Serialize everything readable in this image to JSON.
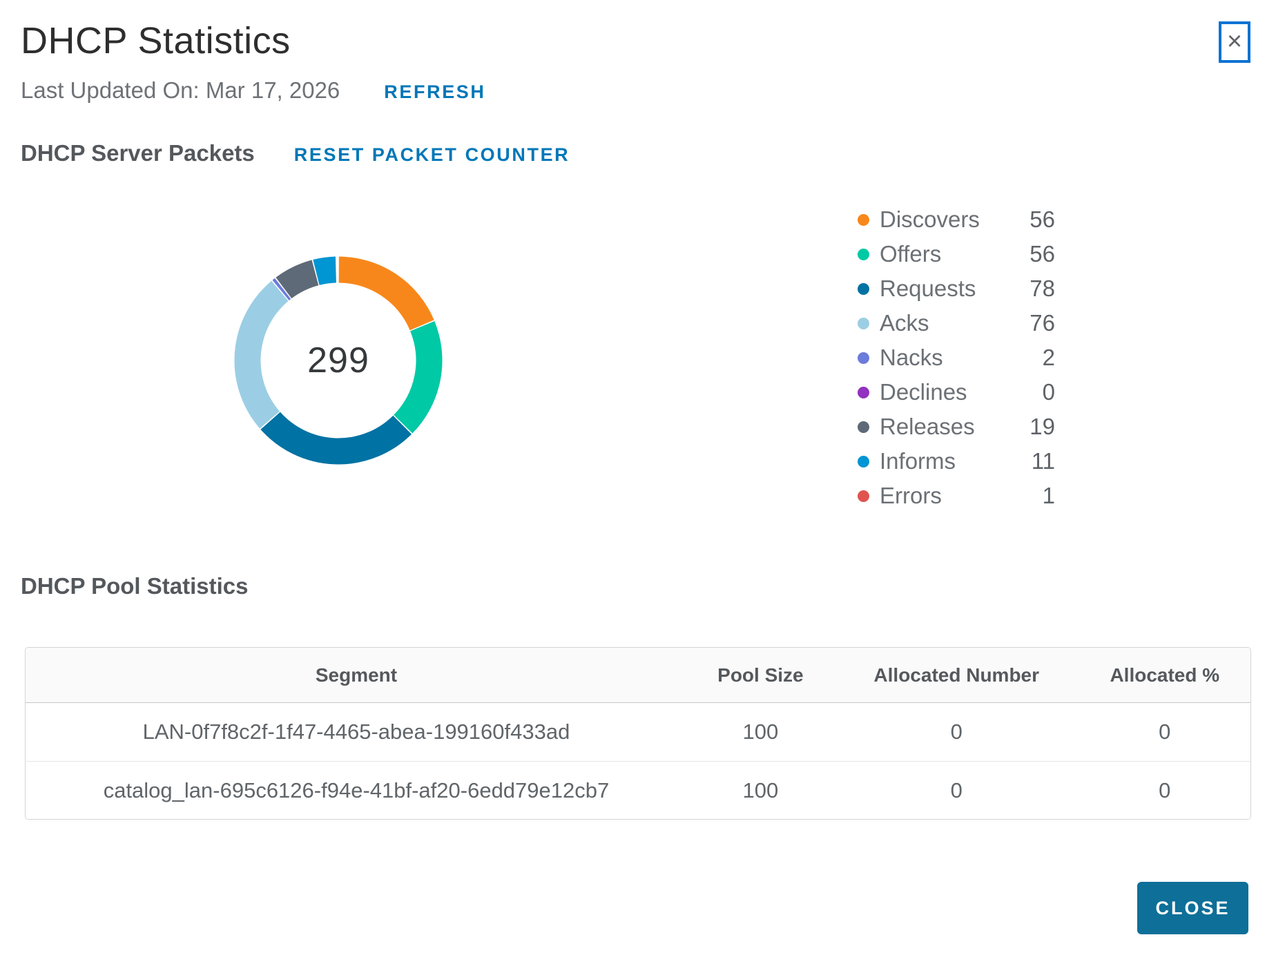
{
  "header": {
    "title": "DHCP Statistics",
    "close_icon": "×"
  },
  "updated": {
    "label": "Last Updated On: Mar 17, 2026",
    "refresh_label": "REFRESH"
  },
  "packets_section": {
    "heading": "DHCP Server Packets",
    "reset_label": "RESET PACKET COUNTER"
  },
  "chart_data": {
    "type": "donut",
    "title": "DHCP Server Packets",
    "center_total": "299",
    "legend_position": "right",
    "categories": [
      "Discovers",
      "Offers",
      "Requests",
      "Acks",
      "Nacks",
      "Declines",
      "Releases",
      "Informs",
      "Errors"
    ],
    "values": [
      56,
      56,
      78,
      76,
      2,
      0,
      19,
      11,
      1
    ],
    "colors": [
      "#F8871B",
      "#00C9A5",
      "#0072A3",
      "#9BCEE4",
      "#6C7CDB",
      "#9232C0",
      "#5E6A77",
      "#0095D3",
      "#E0544F"
    ]
  },
  "pool_section": {
    "heading": "DHCP Pool Statistics"
  },
  "table": {
    "columns": [
      "Segment",
      "Pool Size",
      "Allocated Number",
      "Allocated %"
    ],
    "rows": [
      [
        "LAN-0f7f8c2f-1f47-4465-abea-199160f433ad",
        "100",
        "0",
        "0"
      ],
      [
        "catalog_lan-695c6126-f94e-41bf-af20-6edd79e12cb7",
        "100",
        "0",
        "0"
      ]
    ]
  },
  "footer": {
    "close_label": "CLOSE"
  },
  "ui_colors": {
    "link_blue": "#0077B8",
    "primary_button_blue": "#0E6F98",
    "focus_border_blue": "#0B72D4",
    "heading_gray": "#54585C",
    "body_gray": "#6B7075"
  }
}
